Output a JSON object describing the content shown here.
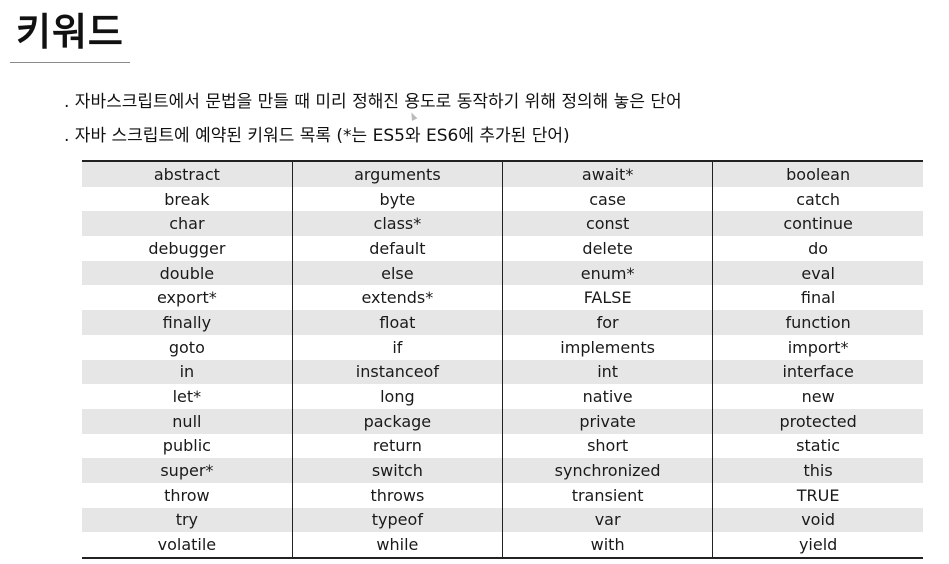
{
  "title": "키워드",
  "bullets": [
    ". 자바스크립트에서 문법을 만들 때 미리 정해진 용도로 동작하기 위해 정의해 놓은 단어",
    ". 자바 스크립트에 예약된 키워드 목록 (*는 ES5와 ES6에 추가된 단어)"
  ],
  "keywords": {
    "rows": [
      [
        "abstract",
        "arguments",
        "await*",
        "boolean"
      ],
      [
        "break",
        "byte",
        "case",
        "catch"
      ],
      [
        "char",
        "class*",
        "const",
        "continue"
      ],
      [
        "debugger",
        "default",
        "delete",
        "do"
      ],
      [
        "double",
        "else",
        "enum*",
        "eval"
      ],
      [
        "export*",
        "extends*",
        "FALSE",
        "final"
      ],
      [
        "finally",
        "float",
        "for",
        "function"
      ],
      [
        "goto",
        "if",
        "implements",
        "import*"
      ],
      [
        "in",
        "instanceof",
        "int",
        "interface"
      ],
      [
        "let*",
        "long",
        "native",
        "new"
      ],
      [
        "null",
        "package",
        "private",
        "protected"
      ],
      [
        "public",
        "return",
        "short",
        "static"
      ],
      [
        "super*",
        "switch",
        "synchronized",
        "this"
      ],
      [
        "throw",
        "throws",
        "transient",
        "TRUE"
      ],
      [
        "try",
        "typeof",
        "var",
        "void"
      ],
      [
        "volatile",
        "while",
        "with",
        "yield"
      ]
    ]
  }
}
